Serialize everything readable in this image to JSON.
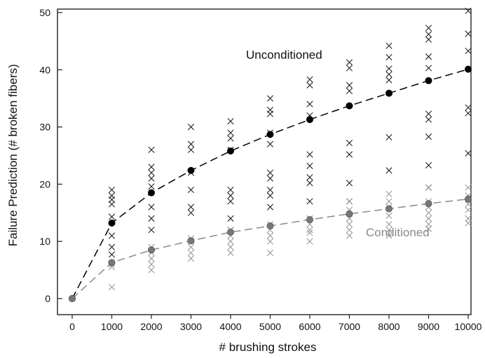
{
  "chart_data": {
    "type": "scatter",
    "title": "",
    "xlabel": "# brushing strokes",
    "ylabel": "Failure Prediction (# broken fibers)",
    "xlim": [
      0,
      10000
    ],
    "ylim": [
      0,
      50
    ],
    "x_ticks": [
      0,
      1000,
      2000,
      3000,
      4000,
      5000,
      6000,
      7000,
      8000,
      9000,
      10000
    ],
    "y_ticks": [
      0,
      10,
      20,
      30,
      40,
      50
    ],
    "grid": false,
    "series": [
      {
        "name": "Unconditioned",
        "color": "#000000",
        "mean_x": [
          0,
          1000,
          2000,
          3000,
          4000,
          5000,
          6000,
          7000,
          8000,
          9000,
          10000
        ],
        "mean_y": [
          0,
          13.2,
          18.5,
          22.4,
          25.8,
          28.7,
          31.3,
          33.7,
          35.9,
          38.1,
          40.1
        ],
        "samples": [
          {
            "x": 1000,
            "y": [
              19,
              18,
              17.3,
              16.5,
              14.3,
              11,
              9,
              7.7
            ]
          },
          {
            "x": 2000,
            "y": [
              26,
              23,
              22,
              21,
              19.6,
              16,
              14,
              12
            ]
          },
          {
            "x": 3000,
            "y": [
              30,
              27,
              26,
              22,
              19,
              16,
              15
            ]
          },
          {
            "x": 4000,
            "y": [
              31,
              29,
              28,
              26,
              19,
              18,
              17,
              14,
              12
            ]
          },
          {
            "x": 5000,
            "y": [
              35,
              33,
              32.3,
              29,
              27,
              22,
              21,
              19,
              18,
              16
            ]
          },
          {
            "x": 6000,
            "y": [
              38.3,
              37.3,
              34,
              32,
              25.2,
              23.2,
              21.2,
              20.2,
              17
            ]
          },
          {
            "x": 7000,
            "y": [
              41.3,
              40.3,
              37.3,
              36.3,
              27.2,
              25.2,
              20.2,
              17
            ]
          },
          {
            "x": 8000,
            "y": [
              44.2,
              42.2,
              40.2,
              39.2,
              38.2,
              28.2,
              22.4
            ]
          },
          {
            "x": 9000,
            "y": [
              47.3,
              46.2,
              45.3,
              42.3,
              40.3,
              32.3,
              31.3,
              28.3,
              23.3,
              19.4
            ]
          },
          {
            "x": 10000,
            "y": [
              50.3,
              46.3,
              43.3,
              33.4,
              32.4,
              25.4
            ]
          }
        ]
      },
      {
        "name": "Conditioned",
        "color": "#8a8a8a",
        "mean_x": [
          0,
          1000,
          2000,
          3000,
          4000,
          5000,
          6000,
          7000,
          8000,
          9000,
          10000
        ],
        "mean_y": [
          0,
          6.3,
          8.5,
          10.1,
          11.6,
          12.7,
          13.8,
          14.8,
          15.7,
          16.6,
          17.4
        ],
        "samples": [
          {
            "x": 1000,
            "y": [
              6,
              5.5,
              2
            ]
          },
          {
            "x": 2000,
            "y": [
              9,
              8,
              7,
              6,
              5
            ]
          },
          {
            "x": 3000,
            "y": [
              10.5,
              10,
              9,
              8,
              7
            ]
          },
          {
            "x": 4000,
            "y": [
              12,
              11,
              10,
              9,
              8
            ]
          },
          {
            "x": 5000,
            "y": [
              13,
              12,
              11,
              10,
              8
            ]
          },
          {
            "x": 6000,
            "y": [
              14,
              13,
              12,
              11.5,
              10
            ]
          },
          {
            "x": 7000,
            "y": [
              17,
              15.5,
              14,
              13,
              12,
              11
            ]
          },
          {
            "x": 8000,
            "y": [
              18.3,
              17,
              16,
              14.5,
              13,
              12,
              11
            ]
          },
          {
            "x": 9000,
            "y": [
              19.4,
              17,
              16,
              15,
              14,
              13,
              12.2
            ]
          },
          {
            "x": 10000,
            "y": [
              19.4,
              18,
              16.5,
              15.5,
              14,
              13.2
            ]
          }
        ]
      }
    ]
  }
}
